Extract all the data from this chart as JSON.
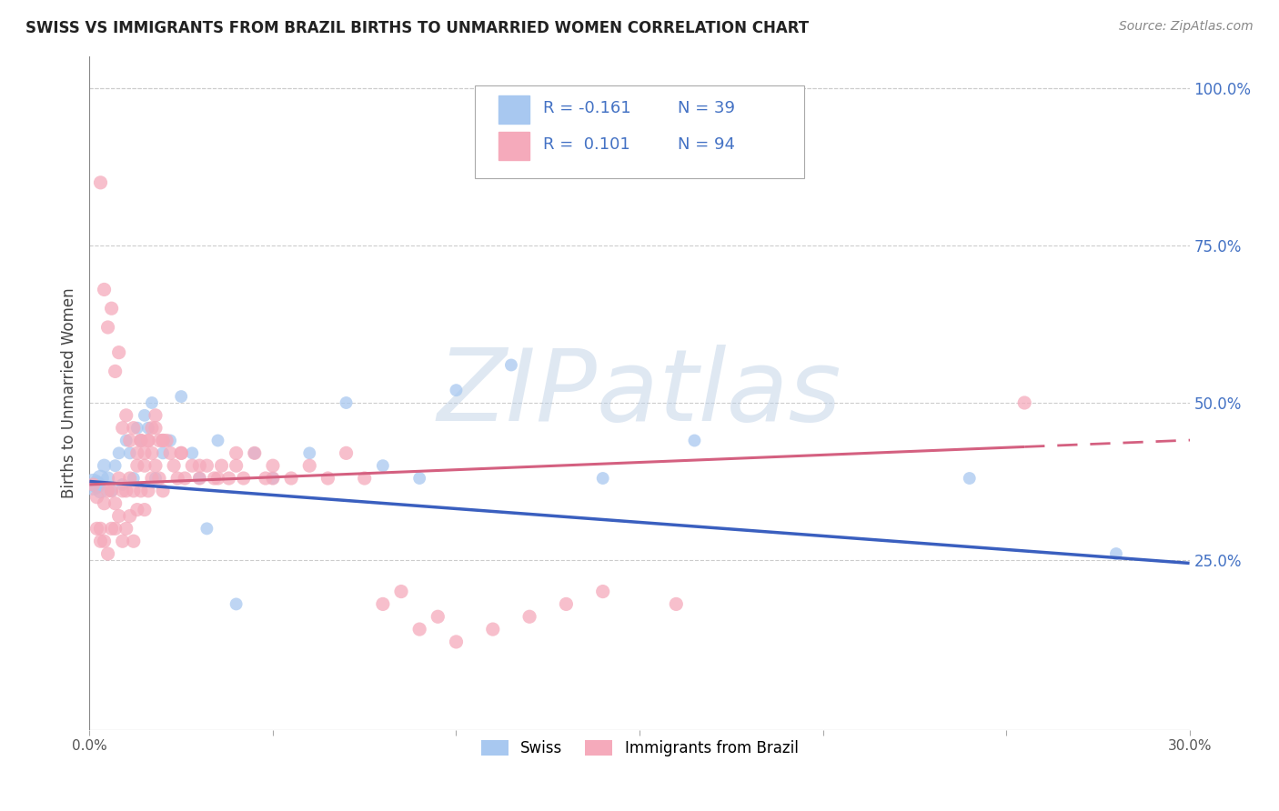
{
  "title": "SWISS VS IMMIGRANTS FROM BRAZIL BIRTHS TO UNMARRIED WOMEN CORRELATION CHART",
  "source": "Source: ZipAtlas.com",
  "ylabel": "Births to Unmarried Women",
  "watermark": "ZIPatlas",
  "legend_r1": "R = -0.161",
  "legend_n1": "N = 39",
  "legend_r2": "R =  0.101",
  "legend_n2": "N = 94",
  "series1_label": "Swiss",
  "series2_label": "Immigrants from Brazil",
  "color_swiss": "#A8C8F0",
  "color_brazil": "#F5AABB",
  "color_swiss_line": "#3A5FBF",
  "color_brazil_line": "#D46080",
  "color_right_axis": "#4472C4",
  "color_legend_text": "#4472C4",
  "right_yticks": [
    0.0,
    0.25,
    0.5,
    0.75,
    1.0
  ],
  "right_yticklabels": [
    "",
    "25.0%",
    "50.0%",
    "75.0%",
    "100.0%"
  ],
  "xmin": 0.0,
  "xmax": 0.3,
  "ymin": -0.02,
  "ymax": 1.05,
  "swiss_x": [
    0.001,
    0.002,
    0.003,
    0.003,
    0.004,
    0.005,
    0.006,
    0.007,
    0.008,
    0.009,
    0.01,
    0.011,
    0.012,
    0.013,
    0.014,
    0.015,
    0.016,
    0.017,
    0.018,
    0.02,
    0.022,
    0.025,
    0.028,
    0.03,
    0.032,
    0.035,
    0.04,
    0.045,
    0.05,
    0.06,
    0.07,
    0.08,
    0.09,
    0.1,
    0.115,
    0.14,
    0.165,
    0.24,
    0.28
  ],
  "swiss_y": [
    0.37,
    0.37,
    0.38,
    0.36,
    0.4,
    0.38,
    0.36,
    0.4,
    0.42,
    0.37,
    0.44,
    0.42,
    0.38,
    0.46,
    0.44,
    0.48,
    0.46,
    0.5,
    0.38,
    0.42,
    0.44,
    0.51,
    0.42,
    0.38,
    0.3,
    0.44,
    0.18,
    0.42,
    0.38,
    0.42,
    0.5,
    0.4,
    0.38,
    0.52,
    0.56,
    0.38,
    0.44,
    0.38,
    0.26
  ],
  "swiss_size_scale": [
    300,
    200,
    180,
    150,
    120,
    120,
    100,
    100,
    100,
    100,
    100,
    100,
    100,
    100,
    100,
    100,
    100,
    100,
    100,
    100,
    100,
    100,
    100,
    100,
    100,
    100,
    100,
    100,
    100,
    100,
    100,
    100,
    100,
    100,
    100,
    100,
    100,
    100,
    100
  ],
  "brazil_x": [
    0.001,
    0.002,
    0.002,
    0.003,
    0.003,
    0.004,
    0.004,
    0.005,
    0.005,
    0.006,
    0.006,
    0.007,
    0.007,
    0.008,
    0.008,
    0.009,
    0.009,
    0.01,
    0.01,
    0.011,
    0.011,
    0.012,
    0.012,
    0.013,
    0.013,
    0.014,
    0.014,
    0.015,
    0.015,
    0.016,
    0.016,
    0.017,
    0.017,
    0.018,
    0.018,
    0.019,
    0.02,
    0.02,
    0.021,
    0.022,
    0.023,
    0.024,
    0.025,
    0.026,
    0.028,
    0.03,
    0.032,
    0.034,
    0.036,
    0.038,
    0.04,
    0.042,
    0.045,
    0.048,
    0.05,
    0.055,
    0.06,
    0.065,
    0.07,
    0.075,
    0.08,
    0.085,
    0.09,
    0.095,
    0.1,
    0.11,
    0.12,
    0.13,
    0.14,
    0.16,
    0.003,
    0.004,
    0.005,
    0.006,
    0.007,
    0.008,
    0.009,
    0.01,
    0.011,
    0.012,
    0.013,
    0.014,
    0.015,
    0.016,
    0.017,
    0.018,
    0.019,
    0.02,
    0.025,
    0.03,
    0.035,
    0.04,
    0.05,
    0.255
  ],
  "brazil_y": [
    0.37,
    0.35,
    0.3,
    0.3,
    0.28,
    0.34,
    0.28,
    0.36,
    0.26,
    0.36,
    0.3,
    0.34,
    0.3,
    0.38,
    0.32,
    0.36,
    0.28,
    0.36,
    0.3,
    0.38,
    0.32,
    0.36,
    0.28,
    0.4,
    0.33,
    0.44,
    0.36,
    0.42,
    0.33,
    0.44,
    0.36,
    0.46,
    0.38,
    0.48,
    0.4,
    0.38,
    0.44,
    0.36,
    0.44,
    0.42,
    0.4,
    0.38,
    0.42,
    0.38,
    0.4,
    0.38,
    0.4,
    0.38,
    0.4,
    0.38,
    0.42,
    0.38,
    0.42,
    0.38,
    0.4,
    0.38,
    0.4,
    0.38,
    0.42,
    0.38,
    0.18,
    0.2,
    0.14,
    0.16,
    0.12,
    0.14,
    0.16,
    0.18,
    0.2,
    0.18,
    0.85,
    0.68,
    0.62,
    0.65,
    0.55,
    0.58,
    0.46,
    0.48,
    0.44,
    0.46,
    0.42,
    0.44,
    0.4,
    0.44,
    0.42,
    0.46,
    0.44,
    0.44,
    0.42,
    0.4,
    0.38,
    0.4,
    0.38,
    0.5
  ]
}
